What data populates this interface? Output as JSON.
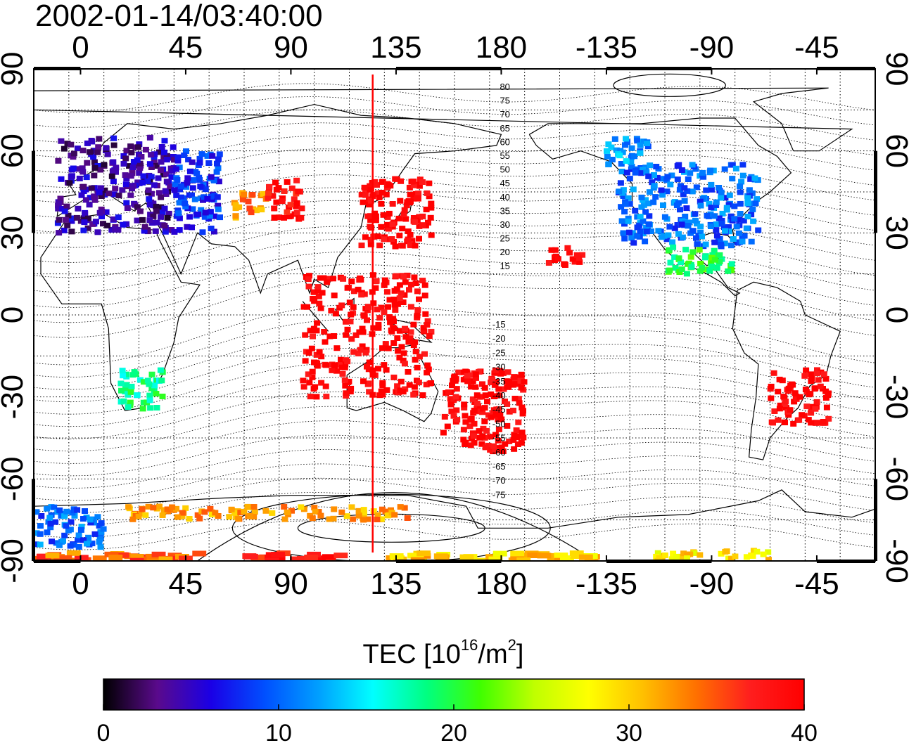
{
  "plot": {
    "title": "2002-01-14/03:40:00",
    "top_lon_labels": [
      "0",
      "45",
      "90",
      "135",
      "180",
      "-135",
      "-90",
      "-45"
    ],
    "bottom_lon_labels": [
      "0",
      "45",
      "90",
      "135",
      "180",
      "-135",
      "-90",
      "-45"
    ],
    "lat_labels": [
      "90",
      "60",
      "30",
      "0",
      "-30",
      "-60",
      "-90"
    ],
    "colorbar": {
      "title_prefix": "TEC  [10",
      "title_exp1": "16",
      "title_mid": "/m",
      "title_exp2": "2",
      "title_suffix": "]",
      "tick_labels": [
        "0",
        "10",
        "20",
        "30",
        "40"
      ],
      "range": [
        0,
        40
      ],
      "colormap": [
        "#000000",
        "#5a0a8c",
        "#1a00e6",
        "#0050ff",
        "#00a0ff",
        "#00ffff",
        "#00ff80",
        "#40ff00",
        "#c0ff00",
        "#ffff00",
        "#ffc000",
        "#ff7000",
        "#ff1e1e",
        "#ff0000"
      ]
    },
    "contour_labels_north": [
      "80",
      "75",
      "70",
      "65",
      "60",
      "55",
      "50",
      "45",
      "40",
      "35",
      "30",
      "25",
      "20",
      "15"
    ],
    "contour_labels_south": [
      "-15",
      "-20",
      "-25",
      "-30",
      "-35",
      "-40",
      "-45",
      "-50",
      "-55",
      "-60",
      "-65",
      "-70",
      "-75"
    ],
    "subsolar_meridian_lon": 125
  },
  "chart_data": {
    "type": "heatmap",
    "title": "2002-01-14/03:40:00",
    "quantity": "TEC  [10^16/m^2]",
    "value_range": [
      0,
      40
    ],
    "lon_range": [
      -20,
      340
    ],
    "lat_range": [
      -90,
      90
    ],
    "regions": [
      {
        "lon": [
          -10,
          40
        ],
        "lat": [
          30,
          65
        ],
        "tec": 4
      },
      {
        "lon": [
          40,
          60
        ],
        "lat": [
          30,
          60
        ],
        "tec": 8
      },
      {
        "lon": [
          65,
          80
        ],
        "lat": [
          35,
          45
        ],
        "tec": 33
      },
      {
        "lon": [
          80,
          95
        ],
        "lat": [
          35,
          50
        ],
        "tec": 39
      },
      {
        "lon": [
          120,
          150
        ],
        "lat": [
          25,
          50
        ],
        "tec": 40
      },
      {
        "lon": [
          95,
          150
        ],
        "lat": [
          -30,
          15
        ],
        "tec": 40
      },
      {
        "lon": [
          155,
          190
        ],
        "lat": [
          -50,
          -20
        ],
        "tec": 40
      },
      {
        "lon": [
          230,
          290
        ],
        "lat": [
          25,
          55
        ],
        "tec": 10
      },
      {
        "lon": [
          250,
          280
        ],
        "lat": [
          15,
          25
        ],
        "tec": 20
      },
      {
        "lon": [
          295,
          320
        ],
        "lat": [
          -40,
          -20
        ],
        "tec": 40
      },
      {
        "lon": [
          17,
          35
        ],
        "lat": [
          -35,
          -20
        ],
        "tec": 18
      },
      {
        "lon": [
          225,
          245
        ],
        "lat": [
          55,
          65
        ],
        "tec": 12
      },
      {
        "lon": [
          200,
          215
        ],
        "lat": [
          18,
          25
        ],
        "tec": 40
      },
      {
        "lon": [
          -20,
          10
        ],
        "lat": [
          -85,
          -70
        ],
        "tec": 10
      },
      {
        "lon": [
          20,
          140
        ],
        "lat": [
          -75,
          -70
        ],
        "tec": 32
      },
      {
        "lon": [
          -20,
          50
        ],
        "lat": [
          -90,
          -87
        ],
        "tec": 34
      },
      {
        "lon": [
          70,
          110
        ],
        "lat": [
          -90,
          -87
        ],
        "tec": 38
      },
      {
        "lon": [
          130,
          220
        ],
        "lat": [
          -90,
          -87
        ],
        "tec": 30
      },
      {
        "lon": [
          245,
          295
        ],
        "lat": [
          -90,
          -86
        ],
        "tec": 29
      }
    ]
  }
}
